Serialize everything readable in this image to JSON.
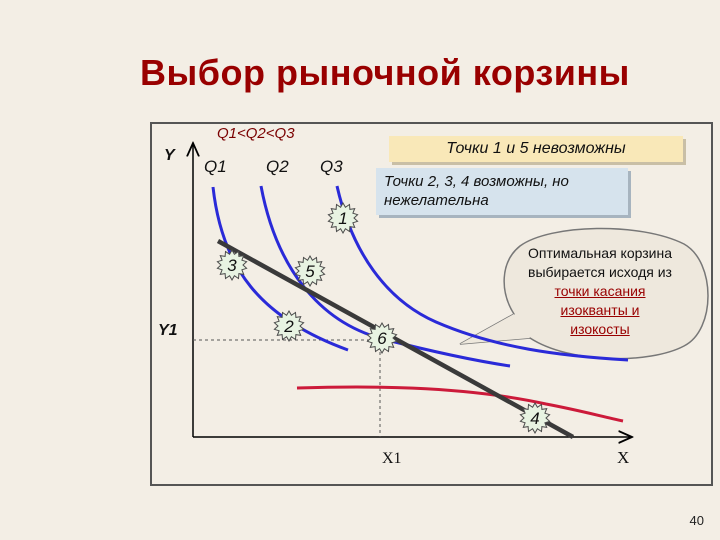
{
  "slide": {
    "title": "Выбор рыночной корзины",
    "page_number": "40"
  },
  "chart": {
    "axis_y_label": "Y",
    "axis_x_label": "X",
    "y_marker": "Y1",
    "x_marker": "X1",
    "curve_order": "Q1<Q2<Q3",
    "curves": [
      {
        "label": "Q1",
        "color": "#2a2ad8"
      },
      {
        "label": "Q2",
        "color": "#2a2ad8"
      },
      {
        "label": "Q3",
        "color": "#2a2ad8"
      }
    ],
    "iso_cost_color": "#3a3a3a",
    "points": [
      {
        "label": "1"
      },
      {
        "label": "2"
      },
      {
        "label": "3"
      },
      {
        "label": "4"
      },
      {
        "label": "5"
      },
      {
        "label": "6"
      }
    ]
  },
  "notes": {
    "impossible": "Точки 1 и 5 невозможны",
    "undesirable": "Точки 2, 3, 4 возможны, но нежелательна"
  },
  "callout": {
    "line1": "Оптимальная корзина",
    "line2": "выбирается исходя из",
    "line3": "точки касания",
    "line4": "изокванты и",
    "line5": "изокосты"
  },
  "colors": {
    "title": "#990000",
    "curve": "#2a2ad8",
    "iso_cost": "#3a3a3a",
    "note_yellow": "#f9e8b8",
    "note_blue": "#d6e3ed"
  }
}
